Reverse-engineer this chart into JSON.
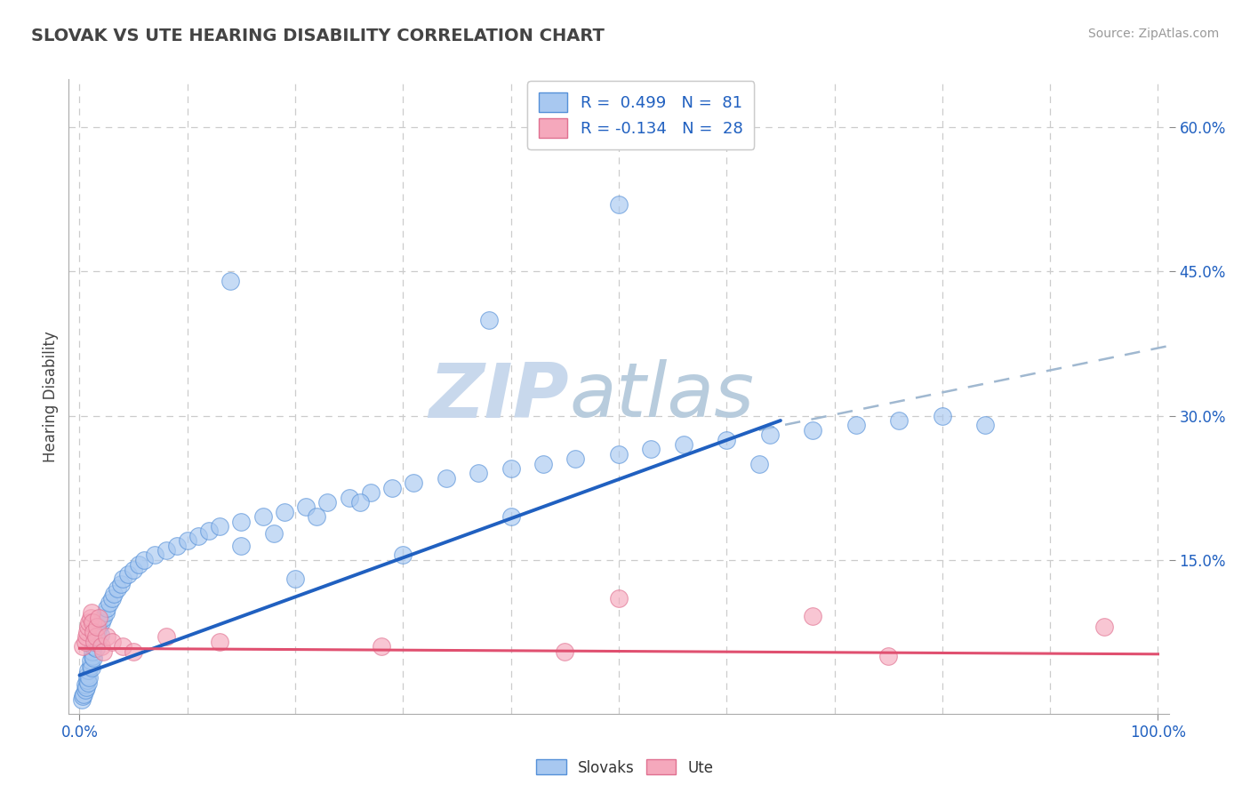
{
  "title": "SLOVAK VS UTE HEARING DISABILITY CORRELATION CHART",
  "source": "Source: ZipAtlas.com",
  "ylabel": "Hearing Disability",
  "xlim": [
    -0.01,
    1.01
  ],
  "ylim": [
    -0.01,
    0.65
  ],
  "xtick_show": [
    0.0,
    1.0
  ],
  "xtick_labels_show": [
    "0.0%",
    "100.0%"
  ],
  "xtick_grid": [
    0.0,
    0.1,
    0.2,
    0.3,
    0.4,
    0.5,
    0.6,
    0.7,
    0.8,
    0.9,
    1.0
  ],
  "ytick_vals": [
    0.15,
    0.3,
    0.45,
    0.6
  ],
  "ytick_labels": [
    "15.0%",
    "30.0%",
    "45.0%",
    "60.0%"
  ],
  "background_color": "#ffffff",
  "grid_color": "#cccccc",
  "title_color": "#444444",
  "source_color": "#999999",
  "blue_fill": "#a8c8f0",
  "blue_edge": "#5590d8",
  "pink_fill": "#f5a8bc",
  "pink_edge": "#e07090",
  "blue_line_color": "#2060c0",
  "pink_line_color": "#e05070",
  "dash_line_color": "#a0b8d0",
  "watermark_zip_color": "#c8d8ec",
  "watermark_atlas_color": "#b8ccdd",
  "legend_label1": "R =  0.499   N =  81",
  "legend_label2": "R = -0.134   N =  28",
  "blue_line_x": [
    0.0,
    0.65
  ],
  "blue_line_y": [
    0.03,
    0.295
  ],
  "dash_line_x": [
    0.63,
    1.02
  ],
  "dash_line_y": [
    0.285,
    0.375
  ],
  "pink_line_x": [
    0.0,
    1.0
  ],
  "pink_line_y": [
    0.058,
    0.052
  ],
  "slovak_x": [
    0.002,
    0.003,
    0.004,
    0.005,
    0.005,
    0.006,
    0.007,
    0.007,
    0.008,
    0.008,
    0.009,
    0.01,
    0.01,
    0.011,
    0.012,
    0.012,
    0.013,
    0.013,
    0.014,
    0.015,
    0.015,
    0.016,
    0.017,
    0.018,
    0.019,
    0.02,
    0.022,
    0.024,
    0.025,
    0.028,
    0.03,
    0.032,
    0.035,
    0.038,
    0.04,
    0.045,
    0.05,
    0.055,
    0.06,
    0.07,
    0.08,
    0.09,
    0.1,
    0.11,
    0.12,
    0.13,
    0.15,
    0.17,
    0.19,
    0.21,
    0.23,
    0.25,
    0.27,
    0.29,
    0.31,
    0.34,
    0.37,
    0.4,
    0.43,
    0.46,
    0.5,
    0.53,
    0.56,
    0.6,
    0.64,
    0.68,
    0.72,
    0.76,
    0.8,
    0.84,
    0.5,
    0.14,
    0.38,
    0.63,
    0.4,
    0.2,
    0.15,
    0.18,
    0.22,
    0.26,
    0.3
  ],
  "slovak_y": [
    0.005,
    0.008,
    0.01,
    0.015,
    0.02,
    0.018,
    0.025,
    0.03,
    0.022,
    0.035,
    0.028,
    0.04,
    0.045,
    0.038,
    0.05,
    0.055,
    0.048,
    0.06,
    0.065,
    0.058,
    0.07,
    0.065,
    0.075,
    0.08,
    0.072,
    0.085,
    0.09,
    0.095,
    0.1,
    0.105,
    0.11,
    0.115,
    0.12,
    0.125,
    0.13,
    0.135,
    0.14,
    0.145,
    0.15,
    0.155,
    0.16,
    0.165,
    0.17,
    0.175,
    0.18,
    0.185,
    0.19,
    0.195,
    0.2,
    0.205,
    0.21,
    0.215,
    0.22,
    0.225,
    0.23,
    0.235,
    0.24,
    0.245,
    0.25,
    0.255,
    0.26,
    0.265,
    0.27,
    0.275,
    0.28,
    0.285,
    0.29,
    0.295,
    0.3,
    0.29,
    0.52,
    0.44,
    0.4,
    0.25,
    0.195,
    0.13,
    0.165,
    0.178,
    0.195,
    0.21,
    0.155
  ],
  "ute_x": [
    0.003,
    0.005,
    0.006,
    0.007,
    0.008,
    0.009,
    0.01,
    0.011,
    0.012,
    0.013,
    0.014,
    0.015,
    0.016,
    0.018,
    0.02,
    0.022,
    0.025,
    0.03,
    0.04,
    0.05,
    0.08,
    0.13,
    0.28,
    0.45,
    0.68,
    0.75,
    0.95,
    0.5
  ],
  "ute_y": [
    0.06,
    0.065,
    0.07,
    0.075,
    0.08,
    0.085,
    0.09,
    0.095,
    0.085,
    0.075,
    0.065,
    0.07,
    0.08,
    0.09,
    0.06,
    0.055,
    0.07,
    0.065,
    0.06,
    0.055,
    0.07,
    0.065,
    0.06,
    0.055,
    0.092,
    0.05,
    0.08,
    0.11
  ]
}
